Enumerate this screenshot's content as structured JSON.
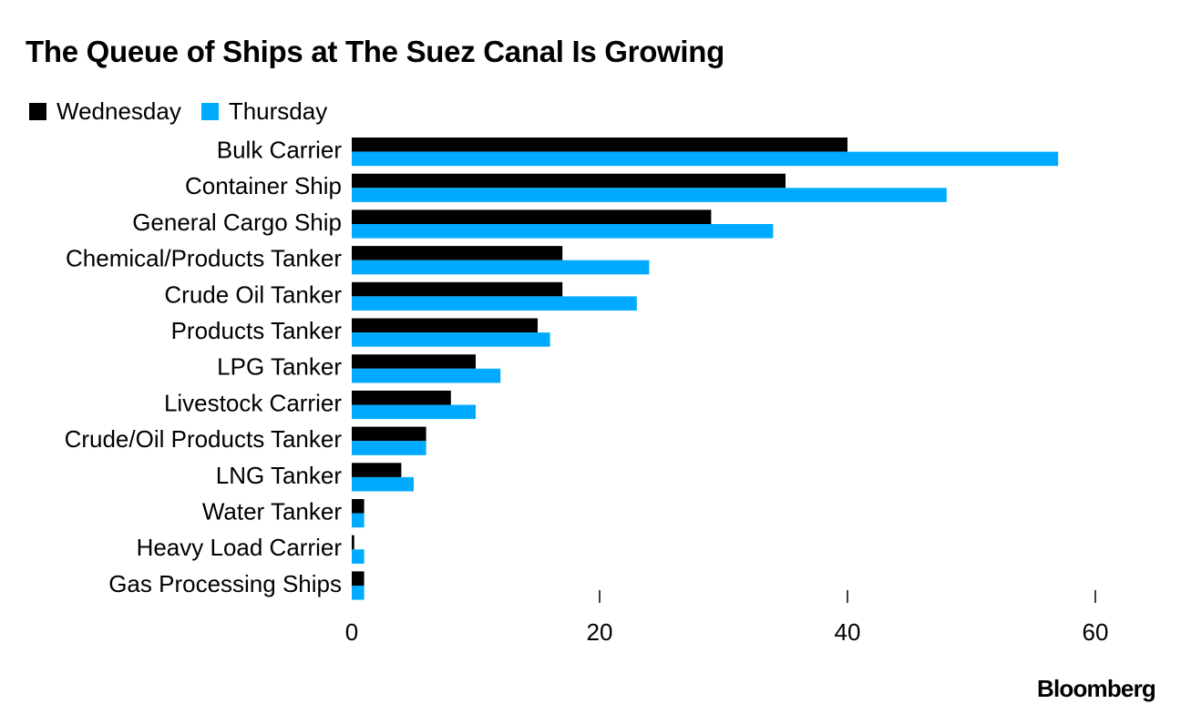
{
  "chart_data": {
    "type": "bar",
    "orientation": "horizontal",
    "title": "The Queue of Ships at The Suez Canal Is Growing",
    "categories": [
      "Bulk Carrier",
      "Container Ship",
      "General Cargo Ship",
      "Chemical/Products Tanker",
      "Crude Oil Tanker",
      "Products Tanker",
      "LPG Tanker",
      "Livestock Carrier",
      "Crude/Oil Products Tanker",
      "LNG Tanker",
      "Water Tanker",
      "Heavy Load Carrier",
      "Gas Processing Ships"
    ],
    "series": [
      {
        "name": "Wednesday",
        "color": "#000000",
        "values": [
          40,
          35,
          29,
          17,
          17,
          15,
          10,
          8,
          6,
          4,
          1,
          0.2,
          1
        ]
      },
      {
        "name": "Thursday",
        "color": "#00aaff",
        "values": [
          57,
          48,
          34,
          24,
          23,
          16,
          12,
          10,
          6,
          5,
          1,
          1,
          1
        ]
      }
    ],
    "xlim": [
      0,
      60
    ],
    "xticks": [
      0,
      20,
      40,
      60
    ],
    "xlabel": "",
    "ylabel": "",
    "grid": false,
    "legend_position": "top-left"
  },
  "branding": {
    "logo": "Bloomberg"
  }
}
